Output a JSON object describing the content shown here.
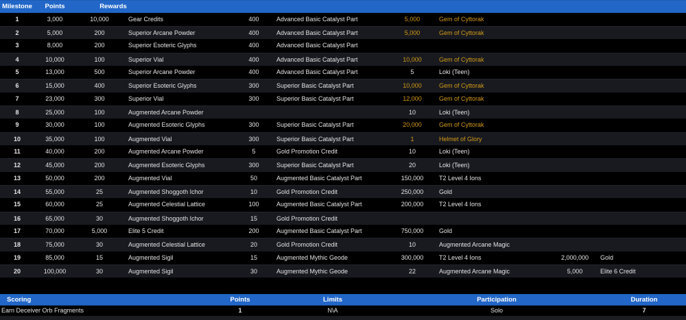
{
  "colors": {
    "header_bg": "#2267c8",
    "header_text": "#ffffff",
    "row_odd_bg": "#000000",
    "row_even_bg": "#181a20",
    "row_text": "#e4e4e4",
    "gold": "#d49a15",
    "page_bg": "#000000",
    "strip_bg": "#1b1d22"
  },
  "milestones": {
    "headers": [
      "Milestone",
      "Points",
      "Rewards"
    ],
    "rows": [
      {
        "milestone": "1",
        "points": "3,000",
        "rewards": [
          {
            "qty": "10,000",
            "name": "Gear Credits"
          },
          {
            "qty": "400",
            "name": "Advanced Basic Catalyst Part"
          },
          {
            "qty": "5,000",
            "name": "Gem of Cyttorak",
            "gold": true
          },
          null
        ]
      },
      {
        "milestone": "2",
        "points": "5,000",
        "rewards": [
          {
            "qty": "200",
            "name": "Superior Arcane Powder"
          },
          {
            "qty": "400",
            "name": "Advanced Basic Catalyst Part"
          },
          {
            "qty": "5,000",
            "name": "Gem of Cyttorak",
            "gold": true
          },
          null
        ]
      },
      {
        "milestone": "3",
        "points": "8,000",
        "rewards": [
          {
            "qty": "200",
            "name": "Superior Esoteric Glyphs"
          },
          {
            "qty": "400",
            "name": "Advanced Basic Catalyst Part"
          },
          null,
          null
        ]
      },
      {
        "milestone": "4",
        "points": "10,000",
        "rewards": [
          {
            "qty": "100",
            "name": "Superior Vial"
          },
          {
            "qty": "400",
            "name": "Advanced Basic Catalyst Part"
          },
          {
            "qty": "10,000",
            "name": "Gem of Cyttorak",
            "gold": true
          },
          null
        ]
      },
      {
        "milestone": "5",
        "points": "13,000",
        "rewards": [
          {
            "qty": "500",
            "name": "Superior Arcane Powder"
          },
          {
            "qty": "400",
            "name": "Advanced Basic Catalyst Part"
          },
          {
            "qty": "5",
            "name": "Loki (Teen)"
          },
          null
        ]
      },
      {
        "milestone": "6",
        "points": "15,000",
        "rewards": [
          {
            "qty": "400",
            "name": "Superior Esoteric Glyphs"
          },
          {
            "qty": "300",
            "name": "Superior Basic Catalyst Part"
          },
          {
            "qty": "10,000",
            "name": "Gem of Cyttorak",
            "gold": true
          },
          null
        ]
      },
      {
        "milestone": "7",
        "points": "23,000",
        "rewards": [
          {
            "qty": "300",
            "name": "Superior Vial"
          },
          {
            "qty": "300",
            "name": "Superior Basic Catalyst Part"
          },
          {
            "qty": "12,000",
            "name": "Gem of Cyttorak",
            "gold": true
          },
          null
        ]
      },
      {
        "milestone": "8",
        "points": "25,000",
        "rewards": [
          {
            "qty": "100",
            "name": "Augmented Arcane Powder"
          },
          null,
          {
            "qty": "10",
            "name": "Loki (Teen)"
          },
          null
        ]
      },
      {
        "milestone": "9",
        "points": "30,000",
        "rewards": [
          {
            "qty": "100",
            "name": "Augmented Esoteric Glyphs"
          },
          {
            "qty": "300",
            "name": "Superior Basic Catalyst Part"
          },
          {
            "qty": "20,000",
            "name": "Gem of Cyttorak",
            "gold": true
          },
          null
        ]
      },
      {
        "milestone": "10",
        "points": "35,000",
        "rewards": [
          {
            "qty": "100",
            "name": "Augmented Vial"
          },
          {
            "qty": "300",
            "name": "Superior Basic Catalyst Part"
          },
          {
            "qty": "1",
            "name": "Helmet of Glory",
            "gold": true
          },
          null
        ]
      },
      {
        "milestone": "11",
        "points": "40,000",
        "rewards": [
          {
            "qty": "200",
            "name": "Augmented Arcane Powder"
          },
          {
            "qty": "5",
            "name": "Gold Promotion Credit"
          },
          {
            "qty": "10",
            "name": "Loki (Teen)"
          },
          null
        ]
      },
      {
        "milestone": "12",
        "points": "45,000",
        "rewards": [
          {
            "qty": "200",
            "name": "Augmented Esoteric Glyphs"
          },
          {
            "qty": "300",
            "name": "Superior Basic Catalyst Part"
          },
          {
            "qty": "20",
            "name": "Loki (Teen)"
          },
          null
        ]
      },
      {
        "milestone": "13",
        "points": "50,000",
        "rewards": [
          {
            "qty": "200",
            "name": "Augmented Vial"
          },
          {
            "qty": "50",
            "name": "Augmented Basic Catalyst Part"
          },
          {
            "qty": "150,000",
            "name": "T2 Level 4 Ions"
          },
          null
        ]
      },
      {
        "milestone": "14",
        "points": "55,000",
        "rewards": [
          {
            "qty": "25",
            "name": "Augmented Shoggoth Ichor"
          },
          {
            "qty": "10",
            "name": "Gold Promotion Credit"
          },
          {
            "qty": "250,000",
            "name": "Gold"
          },
          null
        ]
      },
      {
        "milestone": "15",
        "points": "60,000",
        "rewards": [
          {
            "qty": "25",
            "name": "Augmented Celestial Lattice"
          },
          {
            "qty": "100",
            "name": "Augmented Basic Catalyst Part"
          },
          {
            "qty": "200,000",
            "name": "T2 Level 4 Ions"
          },
          null
        ]
      },
      {
        "milestone": "16",
        "points": "65,000",
        "rewards": [
          {
            "qty": "30",
            "name": "Augmented Shoggoth Ichor"
          },
          {
            "qty": "15",
            "name": "Gold Promotion Credit"
          },
          null,
          null
        ]
      },
      {
        "milestone": "17",
        "points": "70,000",
        "rewards": [
          {
            "qty": "5,000",
            "name": "Elite 5 Credit"
          },
          {
            "qty": "200",
            "name": "Augmented Basic Catalyst Part"
          },
          {
            "qty": "750,000",
            "name": "Gold"
          },
          null
        ]
      },
      {
        "milestone": "18",
        "points": "75,000",
        "rewards": [
          {
            "qty": "30",
            "name": "Augmented Celestial Lattice"
          },
          {
            "qty": "20",
            "name": "Gold Promotion Credit"
          },
          {
            "qty": "10",
            "name": "Augmented Arcane Magic"
          },
          null
        ]
      },
      {
        "milestone": "19",
        "points": "85,000",
        "rewards": [
          {
            "qty": "15",
            "name": "Augmented Sigil"
          },
          {
            "qty": "15",
            "name": "Augmented Mythic Geode"
          },
          {
            "qty": "300,000",
            "name": "T2 Level 4 Ions"
          },
          {
            "qty": "2,000,000",
            "name": "Gold"
          }
        ]
      },
      {
        "milestone": "20",
        "points": "100,000",
        "rewards": [
          {
            "qty": "30",
            "name": "Augmented Sigil"
          },
          {
            "qty": "30",
            "name": "Augmented Mythic Geode"
          },
          {
            "qty": "22",
            "name": "Augmented Arcane Magic"
          },
          {
            "qty": "5,000",
            "name": "Elite 6 Credit"
          }
        ]
      }
    ]
  },
  "scoring": {
    "headers": [
      "Scoring",
      "Points",
      "Limits",
      "Participation",
      "Duration"
    ],
    "rows": [
      {
        "scoring": "Earn Deceiver Orb Fragments",
        "points": "1",
        "limits": "N\\A",
        "participation": "Solo",
        "duration": "7"
      }
    ]
  }
}
